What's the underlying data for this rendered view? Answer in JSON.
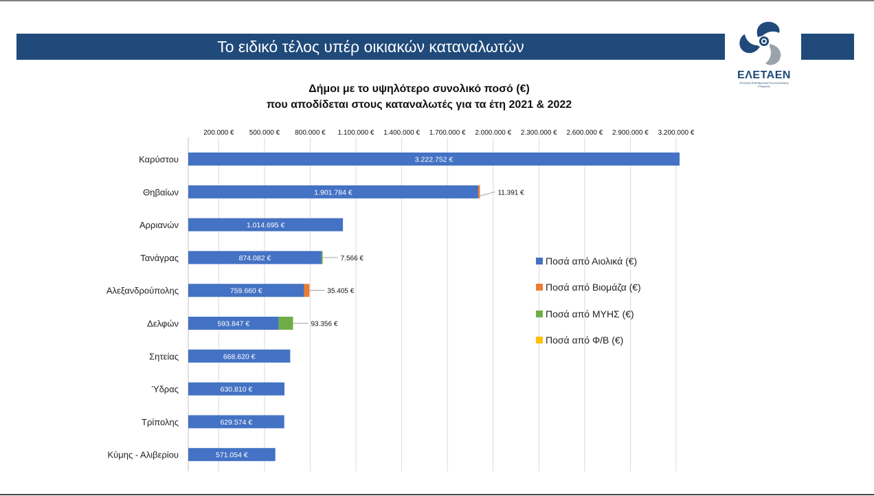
{
  "banner": {
    "title": "Το ειδικό τέλος υπέρ οικιακών καταναλωτών"
  },
  "logo": {
    "name": "ΕΛΕΤΑΕΝ",
    "subtitle": "Ελληνική Επιστημονική Ένωση Αιολικής Ενέργειας"
  },
  "chart_data": {
    "type": "bar",
    "orientation": "horizontal",
    "stacked": true,
    "title_line1": "Δήμοι με το υψηλότερο συνολικό ποσό (€)",
    "title_line2": "που αποδίδεται στους καταναλωτές για τα έτη 2021 & 2022",
    "axis_position": "top",
    "xlim": [
      0,
      3300000
    ],
    "ticks": [
      200000,
      500000,
      800000,
      1100000,
      1400000,
      1700000,
      2000000,
      2300000,
      2600000,
      2900000,
      3200000
    ],
    "tick_labels": [
      "200.000 €",
      "500.000 €",
      "800.000 €",
      "1.100.000 €",
      "1.400.000 €",
      "1.700.000 €",
      "2.000.000 €",
      "2.300.000 €",
      "2.600.000 €",
      "2.900.000 €",
      "3.200.000 €"
    ],
    "categories": [
      "Καρύστου",
      "Θηβαίων",
      "Αρριανών",
      "Τανάγρας",
      "Αλεξανδρούπολης",
      "Δελφών",
      "Σητείας",
      "Ύδρας",
      "Τρίπολης",
      "Κύμης - Αλιβερίου"
    ],
    "series": [
      {
        "name": "Ποσά από Αιολικά (€)",
        "color": "#4472c4",
        "values": [
          3222752,
          1901784,
          1014695,
          874082,
          759660,
          593847,
          668620,
          630810,
          629574,
          571054
        ],
        "labels": [
          "3.222.752 €",
          "1.901.784 €",
          "1.014.695 €",
          "874.082 €",
          "759.660 €",
          "593.847 €",
          "668.620 €",
          "630.810 €",
          "629.574 €",
          "571.054 €"
        ]
      },
      {
        "name": "Ποσά από Βιομάζα (€)",
        "color": "#ed7d31",
        "values": [
          0,
          11391,
          0,
          0,
          35405,
          0,
          0,
          0,
          0,
          0
        ],
        "labels": [
          "",
          "11.391 €",
          "",
          "",
          "35.405 €",
          "",
          "",
          "",
          "",
          ""
        ]
      },
      {
        "name": "Ποσά από ΜΥΗΣ (€)",
        "color": "#70ad47",
        "values": [
          0,
          0,
          0,
          7566,
          0,
          93356,
          0,
          0,
          0,
          0
        ],
        "labels": [
          "",
          "",
          "",
          "7.566 €",
          "",
          "93.356 €",
          "",
          "",
          "",
          ""
        ]
      },
      {
        "name": "Ποσά από Φ/Β (€)",
        "color": "#ffc000",
        "values": [
          0,
          0,
          0,
          0,
          0,
          0,
          0,
          0,
          0,
          0
        ],
        "labels": [
          "",
          "",
          "",
          "",
          "",
          "",
          "",
          "",
          "",
          ""
        ]
      }
    ],
    "legend_position": "right",
    "grid": true
  }
}
